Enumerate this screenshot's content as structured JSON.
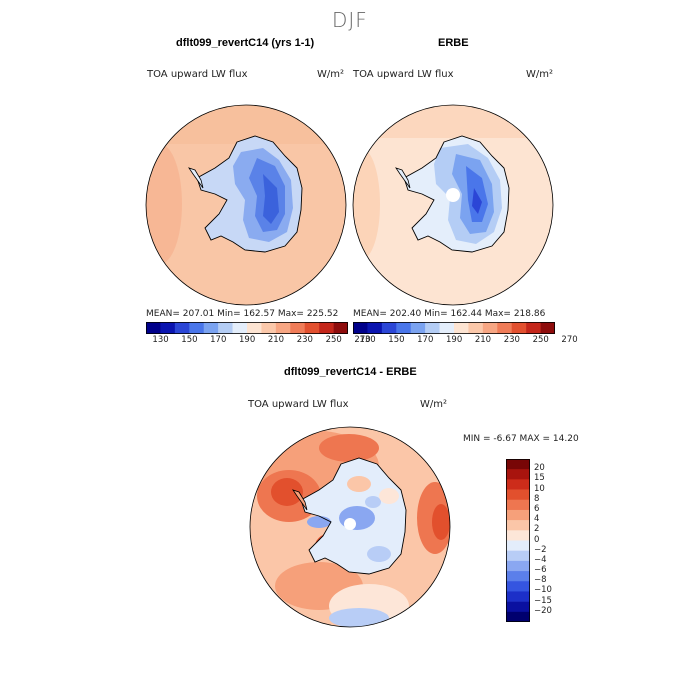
{
  "figure": {
    "season": "DJF"
  },
  "panels": [
    {
      "title": "dflt099_revertC14 (yrs 1-1)",
      "variable": "TOA upward LW flux",
      "units": "W/m²",
      "stats": "MEAN= 207.01   Min= 162.57   Max= 225.52"
    },
    {
      "title": "ERBE",
      "variable": "TOA upward LW flux",
      "units": "W/m²",
      "stats": "MEAN= 202.40   Min= 162.44   Max= 218.86"
    },
    {
      "title": "dflt099_revertC14 - ERBE",
      "variable": "TOA upward LW flux",
      "units": "W/m²",
      "stats": "MIN =   -6.67 MAX =   14.20"
    }
  ],
  "colors": {
    "abs_scale": [
      "#00008b",
      "#0a14b0",
      "#2b46d6",
      "#4a76ea",
      "#7ba3f0",
      "#b4cdf5",
      "#e4eefb",
      "#fde4d2",
      "#fbc8aa",
      "#f7a683",
      "#f07c58",
      "#e2502f",
      "#c4261a",
      "#8e0c0c"
    ],
    "diff_scale": [
      "#00006e",
      "#0a10a0",
      "#1c2fc8",
      "#3555e0",
      "#5b7fea",
      "#8aa7f1",
      "#b8cdf6",
      "#e3edfb",
      "#fde6d8",
      "#fbc6a8",
      "#f6a07a",
      "#ee7650",
      "#e2502d",
      "#cd2c1a",
      "#a8140e",
      "#780606"
    ],
    "coast": "#000000",
    "background": "#ffffff"
  },
  "chart_data": [
    {
      "type": "heatmap",
      "title": "dflt099_revertC14 (yrs 1-1)",
      "subtitle": "TOA upward LW flux",
      "units": "W/m2",
      "colorbar_ticks": [
        130,
        150,
        170,
        190,
        210,
        230,
        250,
        270
      ],
      "mean": 207.01,
      "min": 162.57,
      "max": 225.52
    },
    {
      "type": "heatmap",
      "title": "ERBE",
      "subtitle": "TOA upward LW flux",
      "units": "W/m2",
      "colorbar_ticks": [
        130,
        150,
        170,
        190,
        210,
        230,
        250,
        270
      ],
      "mean": 202.4,
      "min": 162.44,
      "max": 218.86
    },
    {
      "type": "heatmap",
      "title": "dflt099_revertC14 - ERBE",
      "subtitle": "TOA upward LW flux",
      "units": "W/m2",
      "colorbar_ticks": [
        "20",
        "15",
        "10",
        "8",
        "6",
        "4",
        "2",
        "0",
        "−2",
        "−4",
        "−6",
        "−8",
        "−10",
        "−15",
        "−20"
      ],
      "min": -6.67,
      "max": 14.2
    }
  ]
}
